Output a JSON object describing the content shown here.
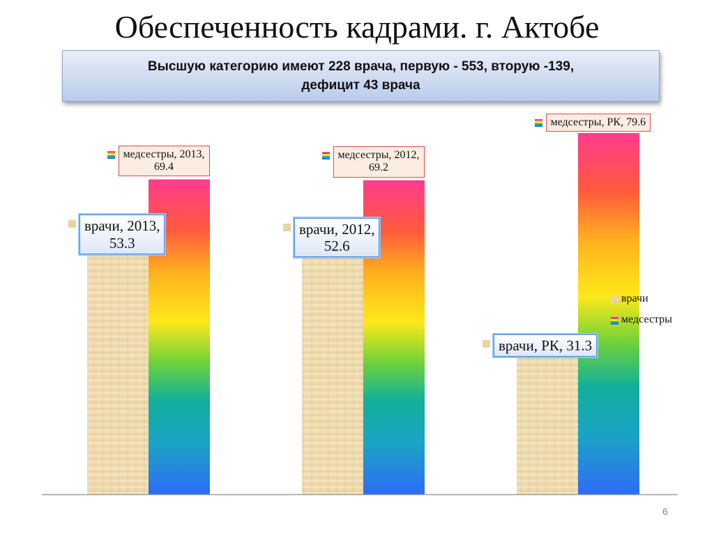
{
  "slide": {
    "title": "Обеспеченность кадрами. г. Актобе",
    "info_line1": "Высшую категорию имеют 228 врача, первую - 553, вторую -139,",
    "info_line2": "дефицит  43 врача",
    "page_number": "6"
  },
  "chart_data": {
    "type": "bar",
    "title": "",
    "xlabel": "",
    "ylabel": "",
    "ylim": [
      0,
      90
    ],
    "grid": false,
    "legend_position": "right",
    "categories": [
      "2013",
      "2012",
      "РК"
    ],
    "series": [
      {
        "name": "врачи",
        "values": [
          53.3,
          52.6,
          31.3
        ],
        "color": "#e9d4a4",
        "labels": [
          {
            "line1": "врачи, 2013,",
            "line2": "53.3"
          },
          {
            "line1": "врачи, 2012,",
            "line2": "52.6"
          },
          {
            "line1": "врачи, РК, 31.3",
            "line2": ""
          }
        ]
      },
      {
        "name": "медсестры",
        "values": [
          69.4,
          69.2,
          79.6
        ],
        "color": "#ff3b8e",
        "labels": [
          {
            "line1": "медсестры, 2013,",
            "line2": "69.4"
          },
          {
            "line1": "медсестры, 2012,",
            "line2": "69.2"
          },
          {
            "line1": "медсестры, РК, 79.6",
            "line2": ""
          }
        ]
      }
    ],
    "legend": [
      "врачи",
      "медсестры"
    ]
  }
}
